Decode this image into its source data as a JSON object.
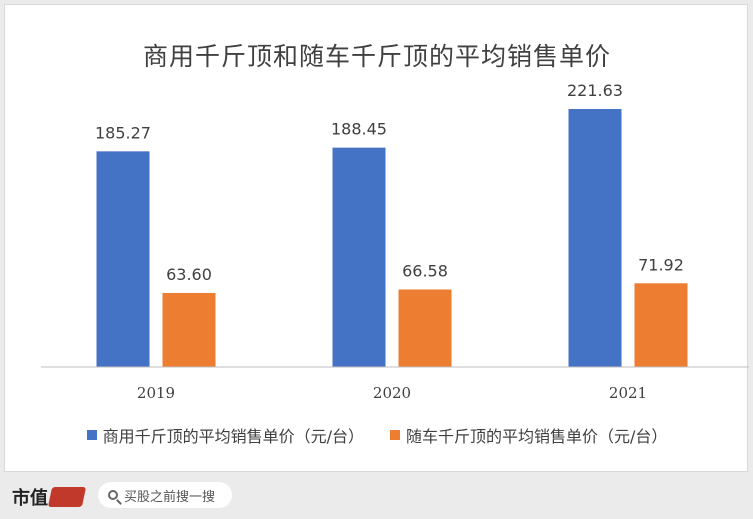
{
  "chart_data": {
    "type": "bar",
    "title": "商用千斤顶和随车千斤顶的平均销售单价",
    "categories": [
      "2019",
      "2020",
      "2021"
    ],
    "series": [
      {
        "name": "商用千斤顶的平均销售单价（元/台）",
        "values": [
          185.27,
          188.45,
          221.63
        ],
        "labels": [
          "185.27",
          "188.45",
          "221.63"
        ],
        "color": "#4472c4"
      },
      {
        "name": "随车千斤顶的平均销售单价（元/台）",
        "values": [
          63.6,
          66.58,
          71.92
        ],
        "labels": [
          "63.60",
          "66.58",
          "71.92"
        ],
        "color": "#ed7d31"
      }
    ],
    "ylim": [
      0,
      250
    ],
    "grid": false,
    "legend": "bottom"
  },
  "footer": {
    "brand": "市值",
    "search_text": "买股之前搜一搜"
  }
}
